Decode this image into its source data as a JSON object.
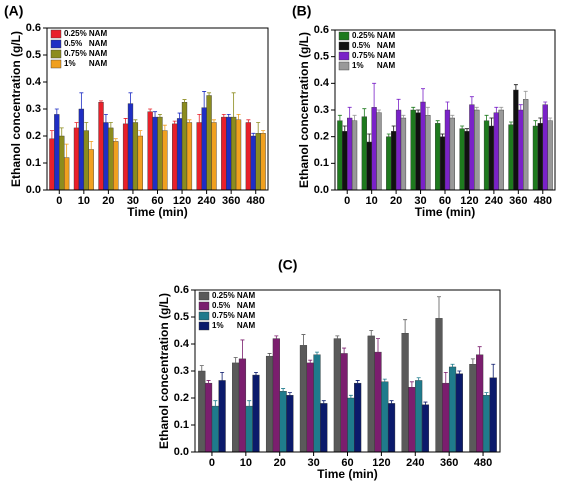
{
  "chart_data": [
    {
      "type": "bar",
      "title": "(A)",
      "xlabel": "Time (min)",
      "ylabel": "Ethanol concentration (g/L)",
      "categories": [
        "0",
        "10",
        "20",
        "30",
        "60",
        "120",
        "240",
        "360",
        "480"
      ],
      "ylim": [
        0,
        0.6
      ],
      "yticks": [
        {
          "value": 0,
          "label": "0.0"
        },
        0.1,
        0.2,
        0.3,
        0.4,
        0.5,
        0.6
      ],
      "legend": "upper left",
      "series": [
        {
          "name": "0.25% NAM",
          "color": "#e8202a",
          "values": [
            0.19,
            0.23,
            0.325,
            0.245,
            0.29,
            0.245,
            0.25,
            0.27,
            0.25
          ],
          "errors": [
            0.03,
            0.02,
            0.005,
            0.02,
            0.01,
            0.01,
            0.03,
            0.01,
            0.01
          ]
        },
        {
          "name": "0.5%   NAM",
          "color": "#1f2ec4",
          "values": [
            0.28,
            0.3,
            0.25,
            0.32,
            0.27,
            0.265,
            0.305,
            0.27,
            0.2
          ],
          "errors": [
            0.02,
            0.06,
            0.03,
            0.04,
            0.02,
            0.02,
            0.06,
            0.01,
            0.01
          ]
        },
        {
          "name": "0.75% NAM",
          "color": "#8c8c1e",
          "values": [
            0.2,
            0.22,
            0.23,
            0.25,
            0.27,
            0.325,
            0.35,
            0.27,
            0.21
          ],
          "errors": [
            0.03,
            0.03,
            0.02,
            0.01,
            0.01,
            0.01,
            0.01,
            0.09,
            0.04
          ]
        },
        {
          "name": "1%      NAM",
          "color": "#f0a020",
          "values": [
            0.12,
            0.15,
            0.18,
            0.2,
            0.22,
            0.25,
            0.25,
            0.26,
            0.21
          ],
          "errors": [
            0.05,
            0.03,
            0.01,
            0.02,
            0.02,
            0.01,
            0.01,
            0.02,
            0.01
          ]
        }
      ]
    },
    {
      "type": "bar",
      "title": "(B)",
      "xlabel": "Time (min)",
      "ylabel": "Ethanol concentration (g/L)",
      "categories": [
        "0",
        "10",
        "20",
        "30",
        "60",
        "120",
        "240",
        "360",
        "480"
      ],
      "ylim": [
        0,
        0.6
      ],
      "yticks": [
        {
          "value": 0,
          "label": "0.0"
        },
        0.1,
        0.2,
        0.3,
        0.4,
        0.5,
        0.6
      ],
      "legend": "upper left",
      "series": [
        {
          "name": "0.25% NAM",
          "color": "#1e7a1e",
          "values": [
            0.26,
            0.275,
            0.2,
            0.3,
            0.25,
            0.23,
            0.26,
            0.245,
            0.24
          ],
          "errors": [
            0.02,
            0.03,
            0.01,
            0.01,
            0.01,
            0.01,
            0.02,
            0.01,
            0.02
          ]
        },
        {
          "name": "0.5%   NAM",
          "color": "#111111",
          "values": [
            0.22,
            0.18,
            0.22,
            0.29,
            0.2,
            0.22,
            0.24,
            0.375,
            0.25
          ],
          "errors": [
            0.02,
            0.03,
            0.02,
            0.01,
            0.01,
            0.01,
            0.03,
            0.02,
            0.02
          ]
        },
        {
          "name": "0.75% NAM",
          "color": "#7a22c8",
          "values": [
            0.27,
            0.31,
            0.3,
            0.33,
            0.3,
            0.32,
            0.29,
            0.3,
            0.32
          ],
          "errors": [
            0.04,
            0.09,
            0.04,
            0.05,
            0.03,
            0.03,
            0.02,
            0.02,
            0.01
          ]
        },
        {
          "name": "1%      NAM",
          "color": "#999999",
          "values": [
            0.26,
            0.29,
            0.27,
            0.28,
            0.27,
            0.3,
            0.3,
            0.34,
            0.26
          ],
          "errors": [
            0.02,
            0.01,
            0.01,
            0.03,
            0.01,
            0.01,
            0.01,
            0.03,
            0.01
          ]
        }
      ]
    },
    {
      "type": "bar",
      "title": "(C)",
      "xlabel": "Time (min)",
      "ylabel": "Ethanol concentration (g/L)",
      "categories": [
        "0",
        "10",
        "20",
        "30",
        "60",
        "120",
        "240",
        "360",
        "480"
      ],
      "ylim": [
        0,
        0.6
      ],
      "yticks": [
        {
          "value": 0,
          "label": "0.0"
        },
        0.1,
        0.2,
        0.3,
        0.4,
        0.5,
        0.6
      ],
      "legend": "upper left",
      "series": [
        {
          "name": "0.25% NAM",
          "color": "#5a5a5a",
          "values": [
            0.3,
            0.33,
            0.355,
            0.395,
            0.42,
            0.43,
            0.44,
            0.495,
            0.325
          ],
          "errors": [
            0.02,
            0.02,
            0.01,
            0.04,
            0.01,
            0.02,
            0.05,
            0.08,
            0.02
          ]
        },
        {
          "name": "0.5%   NAM",
          "color": "#7b1e6e",
          "values": [
            0.255,
            0.345,
            0.42,
            0.33,
            0.365,
            0.37,
            0.24,
            0.255,
            0.36
          ],
          "errors": [
            0.01,
            0.07,
            0.01,
            0.01,
            0.02,
            0.05,
            0.02,
            0.04,
            0.03
          ]
        },
        {
          "name": "0.75% NAM",
          "color": "#1f7b8c",
          "values": [
            0.17,
            0.17,
            0.225,
            0.36,
            0.2,
            0.26,
            0.265,
            0.315,
            0.21
          ],
          "errors": [
            0.02,
            0.02,
            0.01,
            0.01,
            0.01,
            0.01,
            0.01,
            0.01,
            0.01
          ]
        },
        {
          "name": "1%      NAM",
          "color": "#0b1a6b",
          "values": [
            0.265,
            0.285,
            0.21,
            0.18,
            0.255,
            0.18,
            0.175,
            0.29,
            0.275
          ],
          "errors": [
            0.03,
            0.01,
            0.01,
            0.01,
            0.01,
            0.01,
            0.01,
            0.01,
            0.05
          ]
        }
      ]
    }
  ]
}
